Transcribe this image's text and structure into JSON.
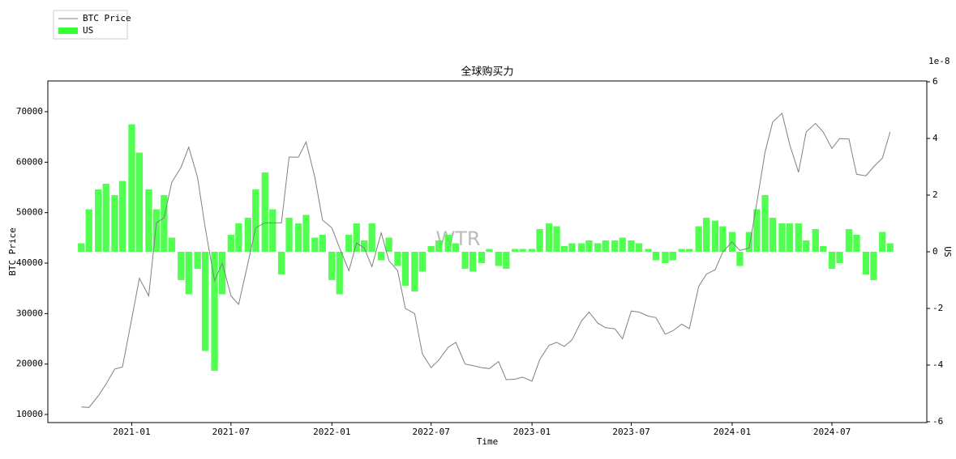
{
  "chart_data": {
    "type": "line_bar",
    "title": "全球购买力",
    "x_label": "Time",
    "y_label": "BTC Price",
    "y2_label": "US",
    "y2_offset_label": "1e-8",
    "watermark": "WTR",
    "legend": "upper left",
    "x": [
      "2020-10-01",
      "2020-10-15",
      "2020-11-01",
      "2020-11-15",
      "2020-12-01",
      "2020-12-15",
      "2021-01-01",
      "2021-01-15",
      "2021-02-01",
      "2021-02-15",
      "2021-03-01",
      "2021-03-15",
      "2021-04-01",
      "2021-04-15",
      "2021-05-01",
      "2021-05-15",
      "2021-06-01",
      "2021-06-15",
      "2021-07-01",
      "2021-07-15",
      "2021-08-01",
      "2021-08-15",
      "2021-09-01",
      "2021-09-15",
      "2021-10-01",
      "2021-10-15",
      "2021-11-01",
      "2021-11-15",
      "2021-12-01",
      "2021-12-15",
      "2022-01-01",
      "2022-01-15",
      "2022-02-01",
      "2022-02-15",
      "2022-03-01",
      "2022-03-15",
      "2022-04-01",
      "2022-04-15",
      "2022-05-01",
      "2022-05-15",
      "2022-06-01",
      "2022-06-15",
      "2022-07-01",
      "2022-07-15",
      "2022-08-01",
      "2022-08-15",
      "2022-09-01",
      "2022-09-15",
      "2022-10-01",
      "2022-10-15",
      "2022-11-01",
      "2022-11-15",
      "2022-12-01",
      "2022-12-15",
      "2023-01-01",
      "2023-01-15",
      "2023-02-01",
      "2023-02-15",
      "2023-03-01",
      "2023-03-15",
      "2023-04-01",
      "2023-04-15",
      "2023-05-01",
      "2023-05-15",
      "2023-06-01",
      "2023-06-15",
      "2023-07-01",
      "2023-07-15",
      "2023-08-01",
      "2023-08-15",
      "2023-09-01",
      "2023-09-15",
      "2023-10-01",
      "2023-10-15",
      "2023-11-01",
      "2023-11-15",
      "2023-12-01",
      "2023-12-15",
      "2024-01-01",
      "2024-01-15",
      "2024-02-01",
      "2024-02-15",
      "2024-03-01",
      "2024-03-15",
      "2024-04-01",
      "2024-04-15",
      "2024-05-01",
      "2024-05-15",
      "2024-06-01",
      "2024-06-15",
      "2024-07-01",
      "2024-07-15",
      "2024-08-01",
      "2024-08-15",
      "2024-09-01",
      "2024-09-15",
      "2024-10-01",
      "2024-10-15"
    ],
    "series": [
      {
        "name": "BTC Price",
        "type": "line",
        "color": "#808080",
        "axis": "y",
        "values": [
          11500,
          11400,
          13700,
          16000,
          19000,
          19400,
          29000,
          37000,
          33500,
          48000,
          49000,
          56000,
          59000,
          63000,
          57000,
          47000,
          36500,
          40000,
          33500,
          31800,
          40000,
          47000,
          48000,
          48000,
          48000,
          61000,
          61000,
          64000,
          57000,
          48500,
          47000,
          43000,
          38500,
          44000,
          43000,
          39300,
          46000,
          40500,
          38500,
          31000,
          30000,
          22000,
          19300,
          20800,
          23300,
          24300,
          20000,
          19700,
          19300,
          19100,
          20500,
          16900,
          17000,
          17400,
          16600,
          20900,
          23700,
          24300,
          23500,
          24800,
          28500,
          30300,
          28100,
          27200,
          27000,
          25000,
          30500,
          30300,
          29500,
          29200,
          25900,
          26600,
          27900,
          27000,
          35400,
          37800,
          38700,
          42200,
          44200,
          42500,
          43000,
          52000,
          62000,
          68000,
          69700,
          63500,
          58000,
          66000,
          67700,
          66000,
          62700,
          64700,
          64600,
          57600,
          57300,
          59100,
          60800,
          66000
        ]
      },
      {
        "name": "US",
        "type": "bar",
        "color": "#33ff33",
        "axis": "y2",
        "values": [
          0.3,
          1.5,
          2.2,
          2.4,
          2.0,
          2.5,
          4.5,
          3.5,
          2.2,
          1.5,
          2.0,
          0.5,
          -1.0,
          -1.5,
          -0.6,
          -3.5,
          -4.2,
          -1.5,
          0.6,
          1.0,
          1.2,
          2.2,
          2.8,
          1.5,
          -0.8,
          1.2,
          1.0,
          1.3,
          0.5,
          0.6,
          -1.0,
          -1.5,
          0.6,
          1.0,
          0.4,
          1.0,
          -0.3,
          0.5,
          -0.5,
          -1.2,
          -1.4,
          -0.7,
          0.2,
          0.4,
          0.6,
          0.3,
          -0.6,
          -0.7,
          -0.4,
          0.1,
          -0.5,
          -0.6,
          0.1,
          0.1,
          0.1,
          0.8,
          1.0,
          0.9,
          0.2,
          0.3,
          0.3,
          0.4,
          0.3,
          0.4,
          0.4,
          0.5,
          0.4,
          0.3,
          0.1,
          -0.3,
          -0.4,
          -0.3,
          0.1,
          0.1,
          0.9,
          1.2,
          1.1,
          0.9,
          0.7,
          -0.5,
          0.7,
          1.5,
          2.0,
          1.2,
          1.0,
          1.0,
          1.0,
          0.4,
          0.8,
          0.2,
          -0.6,
          -0.4,
          0.8,
          0.6,
          -0.8,
          -1.0,
          0.7,
          0.3
        ]
      }
    ],
    "xlim": [
      "2020-08-01",
      "2024-12-21"
    ],
    "xticks": [
      {
        "value": "2021-01-01",
        "label": "2021-01"
      },
      {
        "value": "2021-07-01",
        "label": "2021-07"
      },
      {
        "value": "2022-01-01",
        "label": "2022-01"
      },
      {
        "value": "2022-07-01",
        "label": "2022-07"
      },
      {
        "value": "2023-01-01",
        "label": "2023-01"
      },
      {
        "value": "2023-07-01",
        "label": "2023-07"
      },
      {
        "value": "2024-01-01",
        "label": "2024-01"
      },
      {
        "value": "2024-07-01",
        "label": "2024-07"
      }
    ],
    "ylim": [
      8400,
      76100
    ],
    "yticks": [
      10000,
      20000,
      30000,
      40000,
      50000,
      60000,
      70000
    ],
    "y2lim": [
      -6.03,
      6.03
    ],
    "y2ticks": [
      -6,
      -4,
      -2,
      0,
      2,
      4,
      6
    ],
    "grid": false
  }
}
